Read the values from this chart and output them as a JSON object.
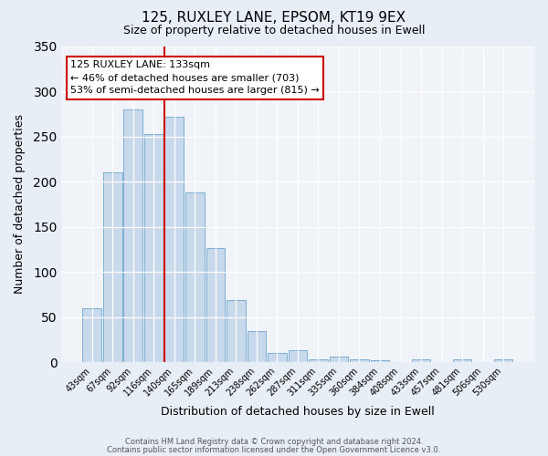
{
  "title": "125, RUXLEY LANE, EPSOM, KT19 9EX",
  "subtitle": "Size of property relative to detached houses in Ewell",
  "xlabel": "Distribution of detached houses by size in Ewell",
  "ylabel": "Number of detached properties",
  "categories": [
    "43sqm",
    "67sqm",
    "92sqm",
    "116sqm",
    "140sqm",
    "165sqm",
    "189sqm",
    "213sqm",
    "238sqm",
    "262sqm",
    "287sqm",
    "311sqm",
    "335sqm",
    "360sqm",
    "384sqm",
    "408sqm",
    "433sqm",
    "457sqm",
    "481sqm",
    "506sqm",
    "530sqm"
  ],
  "values": [
    60,
    210,
    280,
    253,
    272,
    188,
    126,
    69,
    34,
    10,
    13,
    3,
    6,
    3,
    2,
    0,
    3,
    0,
    3,
    0,
    3
  ],
  "bar_color": "#c9d9ec",
  "bar_edge_color": "#7aadd4",
  "vline_color": "#cc0000",
  "annotation_title": "125 RUXLEY LANE: 133sqm",
  "annotation_line1": "← 46% of detached houses are smaller (703)",
  "annotation_line2": "53% of semi-detached houses are larger (815) →",
  "annotation_box_color": "#ffffff",
  "annotation_box_edge": "#cc0000",
  "ylim": [
    0,
    350
  ],
  "yticks": [
    0,
    50,
    100,
    150,
    200,
    250,
    300,
    350
  ],
  "footer1": "Contains HM Land Registry data © Crown copyright and database right 2024.",
  "footer2": "Contains public sector information licensed under the Open Government Licence v3.0.",
  "bg_color": "#e8eef5",
  "plot_bg_color": "#f0f4f9",
  "grid_color": "#ffffff",
  "title_fontsize": 11,
  "subtitle_fontsize": 9,
  "xlabel_fontsize": 9,
  "ylabel_fontsize": 9,
  "tick_fontsize": 7,
  "footer_fontsize": 6,
  "ann_fontsize": 8
}
